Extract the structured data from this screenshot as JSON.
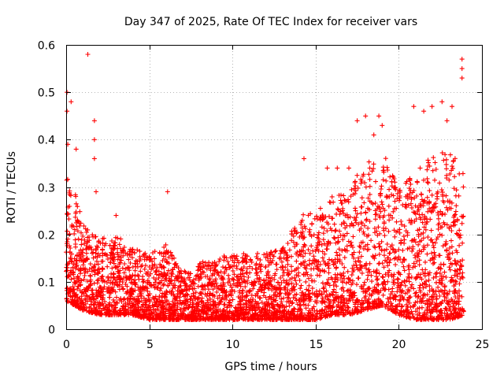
{
  "chart_data": {
    "type": "scatter",
    "title": "Day 347 of 2025, Rate Of TEC Index for receiver vars",
    "xlabel": "GPS time / hours",
    "ylabel": "ROTI / TECUs",
    "xlim": [
      0,
      25
    ],
    "ylim": [
      0,
      0.6
    ],
    "xticks": [
      0,
      5,
      10,
      15,
      20,
      25
    ],
    "xtick_labels": [
      "0",
      "5",
      "10",
      "15",
      "20",
      "25"
    ],
    "yticks": [
      0,
      0.1,
      0.2,
      0.3,
      0.4,
      0.5,
      0.6
    ],
    "ytick_labels": [
      "0",
      "0.1",
      "0.2",
      "0.3",
      "0.4",
      "0.5",
      "0.6"
    ],
    "grid": true,
    "marker": "plus",
    "color": "#ff0000",
    "envelope": [
      {
        "x": 0.0,
        "base": 0.06,
        "upper": 0.33
      },
      {
        "x": 0.5,
        "base": 0.05,
        "upper": 0.3
      },
      {
        "x": 1.0,
        "base": 0.04,
        "upper": 0.22
      },
      {
        "x": 2.0,
        "base": 0.03,
        "upper": 0.2
      },
      {
        "x": 3.0,
        "base": 0.03,
        "upper": 0.2
      },
      {
        "x": 4.0,
        "base": 0.03,
        "upper": 0.17
      },
      {
        "x": 5.0,
        "base": 0.02,
        "upper": 0.16
      },
      {
        "x": 6.0,
        "base": 0.02,
        "upper": 0.18
      },
      {
        "x": 7.0,
        "base": 0.02,
        "upper": 0.12
      },
      {
        "x": 8.0,
        "base": 0.02,
        "upper": 0.14
      },
      {
        "x": 9.0,
        "base": 0.02,
        "upper": 0.15
      },
      {
        "x": 10.0,
        "base": 0.02,
        "upper": 0.16
      },
      {
        "x": 11.0,
        "base": 0.02,
        "upper": 0.16
      },
      {
        "x": 12.0,
        "base": 0.02,
        "upper": 0.16
      },
      {
        "x": 13.0,
        "base": 0.02,
        "upper": 0.17
      },
      {
        "x": 14.0,
        "base": 0.02,
        "upper": 0.24
      },
      {
        "x": 15.0,
        "base": 0.02,
        "upper": 0.25
      },
      {
        "x": 16.0,
        "base": 0.03,
        "upper": 0.28
      },
      {
        "x": 17.0,
        "base": 0.03,
        "upper": 0.3
      },
      {
        "x": 18.0,
        "base": 0.04,
        "upper": 0.35
      },
      {
        "x": 19.0,
        "base": 0.05,
        "upper": 0.38
      },
      {
        "x": 20.0,
        "base": 0.03,
        "upper": 0.3
      },
      {
        "x": 21.0,
        "base": 0.02,
        "upper": 0.33
      },
      {
        "x": 22.0,
        "base": 0.02,
        "upper": 0.37
      },
      {
        "x": 23.0,
        "base": 0.02,
        "upper": 0.38
      },
      {
        "x": 24.0,
        "base": 0.03,
        "upper": 0.33
      }
    ],
    "highlighted_points": [
      {
        "x": 0.05,
        "y": 0.5
      },
      {
        "x": 0.05,
        "y": 0.46
      },
      {
        "x": 0.1,
        "y": 0.39
      },
      {
        "x": 0.3,
        "y": 0.48
      },
      {
        "x": 0.6,
        "y": 0.38
      },
      {
        "x": 1.3,
        "y": 0.58
      },
      {
        "x": 1.7,
        "y": 0.44
      },
      {
        "x": 1.7,
        "y": 0.4
      },
      {
        "x": 1.7,
        "y": 0.36
      },
      {
        "x": 1.8,
        "y": 0.29
      },
      {
        "x": 3.0,
        "y": 0.24
      },
      {
        "x": 6.1,
        "y": 0.29
      },
      {
        "x": 14.3,
        "y": 0.36
      },
      {
        "x": 15.7,
        "y": 0.34
      },
      {
        "x": 16.3,
        "y": 0.34
      },
      {
        "x": 17.0,
        "y": 0.34
      },
      {
        "x": 17.5,
        "y": 0.44
      },
      {
        "x": 18.0,
        "y": 0.45
      },
      {
        "x": 18.5,
        "y": 0.41
      },
      {
        "x": 18.8,
        "y": 0.45
      },
      {
        "x": 19.0,
        "y": 0.43
      },
      {
        "x": 20.9,
        "y": 0.47
      },
      {
        "x": 21.5,
        "y": 0.46
      },
      {
        "x": 22.0,
        "y": 0.47
      },
      {
        "x": 22.6,
        "y": 0.48
      },
      {
        "x": 22.9,
        "y": 0.44
      },
      {
        "x": 23.2,
        "y": 0.47
      },
      {
        "x": 23.8,
        "y": 0.57
      },
      {
        "x": 23.8,
        "y": 0.55
      },
      {
        "x": 23.8,
        "y": 0.53
      }
    ]
  }
}
